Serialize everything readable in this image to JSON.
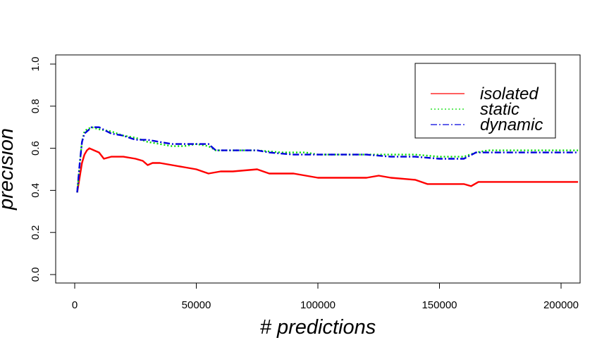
{
  "chart_data": {
    "type": "line",
    "xlabel": "# predictions",
    "ylabel": "precision",
    "xlim": [
      0,
      207000
    ],
    "ylim": [
      0.0,
      1.0
    ],
    "x_ticks": [
      0,
      50000,
      100000,
      150000,
      200000
    ],
    "x_tick_labels": [
      "0",
      "50000",
      "100000",
      "150000",
      "200000"
    ],
    "y_ticks": [
      0.0,
      0.2,
      0.4,
      0.6,
      0.8,
      1.0
    ],
    "y_tick_labels": [
      "0.0",
      "0.2",
      "0.4",
      "0.6",
      "0.8",
      "1.0"
    ],
    "grid": false,
    "legend": {
      "position": "top-right",
      "entries": [
        "isolated",
        "static",
        "dynamic"
      ]
    },
    "series": [
      {
        "name": "isolated",
        "color": "#ff0000",
        "line_style": "solid",
        "points": [
          [
            1000,
            0.39
          ],
          [
            2000,
            0.46
          ],
          [
            3000,
            0.53
          ],
          [
            4000,
            0.57
          ],
          [
            5000,
            0.59
          ],
          [
            6000,
            0.6
          ],
          [
            8000,
            0.59
          ],
          [
            10000,
            0.58
          ],
          [
            12000,
            0.55
          ],
          [
            15000,
            0.56
          ],
          [
            20000,
            0.56
          ],
          [
            25000,
            0.55
          ],
          [
            28000,
            0.54
          ],
          [
            30000,
            0.52
          ],
          [
            32000,
            0.53
          ],
          [
            35000,
            0.53
          ],
          [
            40000,
            0.52
          ],
          [
            45000,
            0.51
          ],
          [
            50000,
            0.5
          ],
          [
            55000,
            0.48
          ],
          [
            60000,
            0.49
          ],
          [
            65000,
            0.49
          ],
          [
            75000,
            0.5
          ],
          [
            80000,
            0.48
          ],
          [
            90000,
            0.48
          ],
          [
            95000,
            0.47
          ],
          [
            100000,
            0.46
          ],
          [
            110000,
            0.46
          ],
          [
            120000,
            0.46
          ],
          [
            125000,
            0.47
          ],
          [
            130000,
            0.46
          ],
          [
            140000,
            0.45
          ],
          [
            145000,
            0.43
          ],
          [
            155000,
            0.43
          ],
          [
            160000,
            0.43
          ],
          [
            163000,
            0.42
          ],
          [
            166000,
            0.44
          ],
          [
            180000,
            0.44
          ],
          [
            190000,
            0.44
          ],
          [
            200000,
            0.44
          ],
          [
            207000,
            0.44
          ]
        ]
      },
      {
        "name": "static",
        "color": "#00dd00",
        "line_style": "dotted",
        "points": [
          [
            1000,
            0.39
          ],
          [
            2000,
            0.52
          ],
          [
            3000,
            0.63
          ],
          [
            4000,
            0.68
          ],
          [
            5000,
            0.69
          ],
          [
            7000,
            0.7
          ],
          [
            10000,
            0.69
          ],
          [
            15000,
            0.68
          ],
          [
            20000,
            0.66
          ],
          [
            25000,
            0.65
          ],
          [
            30000,
            0.63
          ],
          [
            35000,
            0.62
          ],
          [
            40000,
            0.61
          ],
          [
            45000,
            0.61
          ],
          [
            50000,
            0.62
          ],
          [
            55000,
            0.61
          ],
          [
            58000,
            0.59
          ],
          [
            65000,
            0.59
          ],
          [
            75000,
            0.59
          ],
          [
            85000,
            0.58
          ],
          [
            95000,
            0.58
          ],
          [
            100000,
            0.57
          ],
          [
            110000,
            0.57
          ],
          [
            120000,
            0.57
          ],
          [
            130000,
            0.57
          ],
          [
            140000,
            0.57
          ],
          [
            150000,
            0.56
          ],
          [
            160000,
            0.56
          ],
          [
            165000,
            0.58
          ],
          [
            170000,
            0.59
          ],
          [
            180000,
            0.59
          ],
          [
            190000,
            0.59
          ],
          [
            200000,
            0.59
          ],
          [
            207000,
            0.59
          ]
        ]
      },
      {
        "name": "dynamic",
        "color": "#0000dd",
        "line_style": "dashdot",
        "points": [
          [
            1000,
            0.39
          ],
          [
            2000,
            0.52
          ],
          [
            3000,
            0.63
          ],
          [
            4000,
            0.67
          ],
          [
            5000,
            0.68
          ],
          [
            7000,
            0.7
          ],
          [
            10000,
            0.7
          ],
          [
            15000,
            0.67
          ],
          [
            20000,
            0.66
          ],
          [
            25000,
            0.64
          ],
          [
            30000,
            0.64
          ],
          [
            35000,
            0.63
          ],
          [
            40000,
            0.62
          ],
          [
            45000,
            0.62
          ],
          [
            50000,
            0.62
          ],
          [
            55000,
            0.62
          ],
          [
            58000,
            0.59
          ],
          [
            65000,
            0.59
          ],
          [
            75000,
            0.59
          ],
          [
            80000,
            0.58
          ],
          [
            90000,
            0.57
          ],
          [
            100000,
            0.57
          ],
          [
            110000,
            0.57
          ],
          [
            120000,
            0.57
          ],
          [
            130000,
            0.56
          ],
          [
            140000,
            0.56
          ],
          [
            150000,
            0.55
          ],
          [
            160000,
            0.55
          ],
          [
            165000,
            0.58
          ],
          [
            170000,
            0.58
          ],
          [
            180000,
            0.58
          ],
          [
            190000,
            0.58
          ],
          [
            200000,
            0.58
          ],
          [
            207000,
            0.58
          ]
        ]
      }
    ]
  }
}
